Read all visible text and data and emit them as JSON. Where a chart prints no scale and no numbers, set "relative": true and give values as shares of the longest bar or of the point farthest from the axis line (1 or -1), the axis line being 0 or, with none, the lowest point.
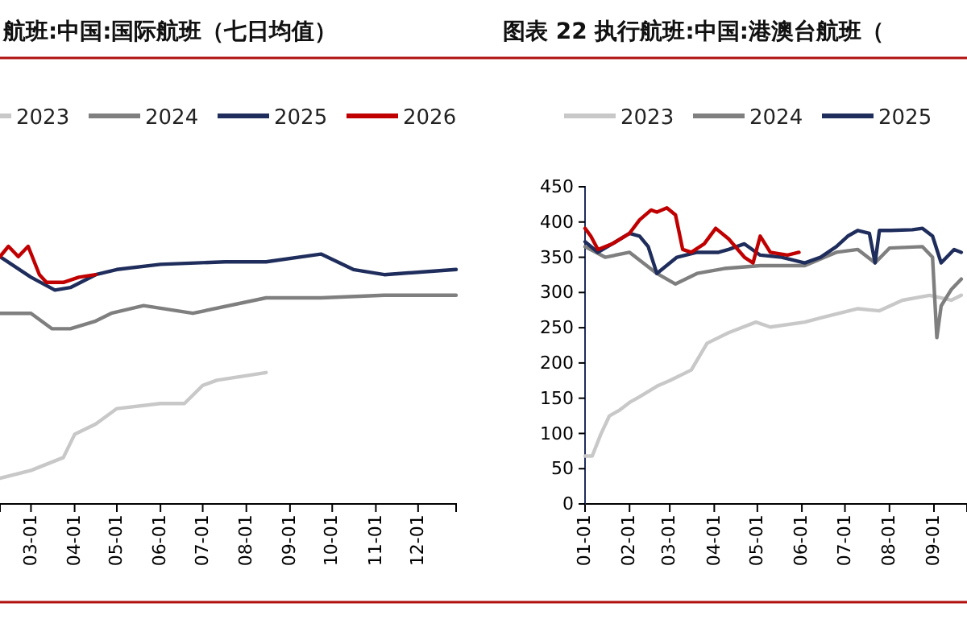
{
  "chart_data": [
    {
      "type": "line",
      "title": "航班:中国:国际航班（七日均值）",
      "relative": true,
      "legend": "top",
      "grid": false,
      "marker": "none",
      "line_style": "solid",
      "xlim": [
        "--02-07",
        "--12-28"
      ],
      "xticks": [
        {
          "value": "--03-01",
          "label": "03-01"
        },
        {
          "value": "--04-01",
          "label": "04-01"
        },
        {
          "value": "--05-01",
          "label": "05-01"
        },
        {
          "value": "--06-01",
          "label": "06-01"
        },
        {
          "value": "--07-01",
          "label": "07-01"
        },
        {
          "value": "--08-01",
          "label": "08-01"
        },
        {
          "value": "--09-01",
          "label": "09-01"
        },
        {
          "value": "--10-01",
          "label": "10-01"
        },
        {
          "value": "--11-01",
          "label": "11-01"
        },
        {
          "value": "--12-01",
          "label": "12-01"
        }
      ],
      "series": [
        {
          "name": "2023",
          "color": "#c8c8c8",
          "x": [
            "--02-07",
            "--03-01",
            "--03-24",
            "--04-01",
            "--04-16",
            "--05-01",
            "--06-01",
            "--06-18",
            "--07-01",
            "--07-11",
            "--08-15"
          ],
          "values": [
            0.1,
            0.13,
            0.18,
            0.27,
            0.31,
            0.37,
            0.39,
            0.39,
            0.46,
            0.48,
            0.51
          ]
        },
        {
          "name": "2024",
          "color": "#7f7f7f",
          "x": [
            "--02-07",
            "--02-18",
            "--03-01",
            "--03-16",
            "--03-29",
            "--04-16",
            "--04-27",
            "--05-20",
            "--06-24",
            "--08-15",
            "--09-23",
            "--11-07",
            "--12-28"
          ],
          "values": [
            0.74,
            0.74,
            0.74,
            0.68,
            0.68,
            0.71,
            0.74,
            0.77,
            0.74,
            0.8,
            0.8,
            0.81,
            0.81
          ]
        },
        {
          "name": "2025",
          "color": "#1f2d5c",
          "x": [
            "--02-07",
            "--03-01",
            "--03-18",
            "--03-29",
            "--04-16",
            "--05-01",
            "--06-01",
            "--07-17",
            "--08-15",
            "--09-23",
            "--10-16",
            "--11-07",
            "--12-28"
          ],
          "values": [
            0.96,
            0.88,
            0.83,
            0.84,
            0.89,
            0.91,
            0.93,
            0.94,
            0.94,
            0.97,
            0.91,
            0.89,
            0.91
          ]
        },
        {
          "name": "2026",
          "color": "#c00000",
          "x": [
            "--02-07",
            "--02-13",
            "--02-20",
            "--02-27",
            "--03-07",
            "--03-12",
            "--03-24",
            "--04-04",
            "--04-16"
          ],
          "values": [
            0.96,
            1.0,
            0.96,
            1.0,
            0.89,
            0.86,
            0.86,
            0.88,
            0.89
          ]
        }
      ]
    },
    {
      "type": "line",
      "title": "图表 22 执行航班:中国:港澳台航班（",
      "legend": "top",
      "grid": false,
      "marker": "none",
      "line_style": "solid",
      "xlim": [
        "--01-01",
        "--09-24"
      ],
      "ylim": [
        0,
        450
      ],
      "yticks": [
        0,
        50,
        100,
        150,
        200,
        250,
        300,
        350,
        400,
        450
      ],
      "xticks": [
        {
          "value": "--01-01",
          "label": "01-01"
        },
        {
          "value": "--02-01",
          "label": "02-01"
        },
        {
          "value": "--03-01",
          "label": "03-01"
        },
        {
          "value": "--04-01",
          "label": "04-01"
        },
        {
          "value": "--05-01",
          "label": "05-01"
        },
        {
          "value": "--06-01",
          "label": "06-01"
        },
        {
          "value": "--07-01",
          "label": "07-01"
        },
        {
          "value": "--08-01",
          "label": "08-01"
        },
        {
          "value": "--09-01",
          "label": "09-01"
        }
      ],
      "series": [
        {
          "name": "2023",
          "color": "#c8c8c8",
          "x": [
            "--01-01",
            "--01-06",
            "--01-12",
            "--01-18",
            "--01-25",
            "--02-01",
            "--02-08",
            "--02-20",
            "--03-01",
            "--03-16",
            "--03-27",
            "--04-11",
            "--04-30",
            "--05-10",
            "--06-03",
            "--06-18",
            "--07-10",
            "--07-25",
            "--08-10",
            "--08-29",
            "--09-13",
            "--09-20"
          ],
          "values": [
            68,
            68,
            99,
            125,
            133,
            144,
            152,
            167,
            175,
            190,
            228,
            243,
            258,
            251,
            258,
            266,
            277,
            274,
            289,
            296,
            289,
            296
          ]
        },
        {
          "name": "2024",
          "color": "#7f7f7f",
          "x": [
            "--01-01",
            "--01-15",
            "--02-01",
            "--02-20",
            "--03-05",
            "--03-20",
            "--04-08",
            "--05-03",
            "--06-03",
            "--06-25",
            "--07-10",
            "--07-22",
            "--08-01",
            "--08-24",
            "--08-31",
            "--09-03",
            "--09-06",
            "--09-13",
            "--09-20"
          ],
          "values": [
            365,
            350,
            357,
            327,
            312,
            327,
            334,
            338,
            338,
            357,
            361,
            342,
            363,
            365,
            350,
            236,
            281,
            304,
            319
          ]
        },
        {
          "name": "2025",
          "color": "#1f2d5c",
          "x": [
            "--01-01",
            "--01-10",
            "--01-20",
            "--02-01",
            "--02-08",
            "--02-14",
            "--02-20",
            "--03-06",
            "--03-20",
            "--04-04",
            "--04-11",
            "--04-22",
            "--05-03",
            "--05-18",
            "--06-03",
            "--06-14",
            "--06-25",
            "--07-03",
            "--07-10",
            "--07-18",
            "--07-22",
            "--07-25",
            "--08-02",
            "--08-17",
            "--08-24",
            "--08-31",
            "--09-06",
            "--09-15",
            "--09-20"
          ],
          "values": [
            372,
            357,
            369,
            384,
            380,
            365,
            327,
            350,
            357,
            357,
            361,
            369,
            353,
            350,
            342,
            350,
            365,
            380,
            388,
            384,
            342,
            388,
            388,
            389,
            391,
            380,
            342,
            361,
            357
          ]
        },
        {
          "color": "#c00000",
          "x": [
            "--01-01",
            "--01-05",
            "--01-10",
            "--01-20",
            "--02-01",
            "--02-08",
            "--02-16",
            "--02-20",
            "--02-27",
            "--03-05",
            "--03-10",
            "--03-16",
            "--03-25",
            "--04-02",
            "--04-11",
            "--04-22",
            "--04-28",
            "--05-03",
            "--05-10",
            "--05-22",
            "--05-30"
          ],
          "values": [
            391,
            380,
            361,
            369,
            384,
            403,
            417,
            414,
            420,
            410,
            361,
            357,
            369,
            391,
            376,
            350,
            342,
            380,
            357,
            353,
            357
          ]
        }
      ]
    }
  ]
}
